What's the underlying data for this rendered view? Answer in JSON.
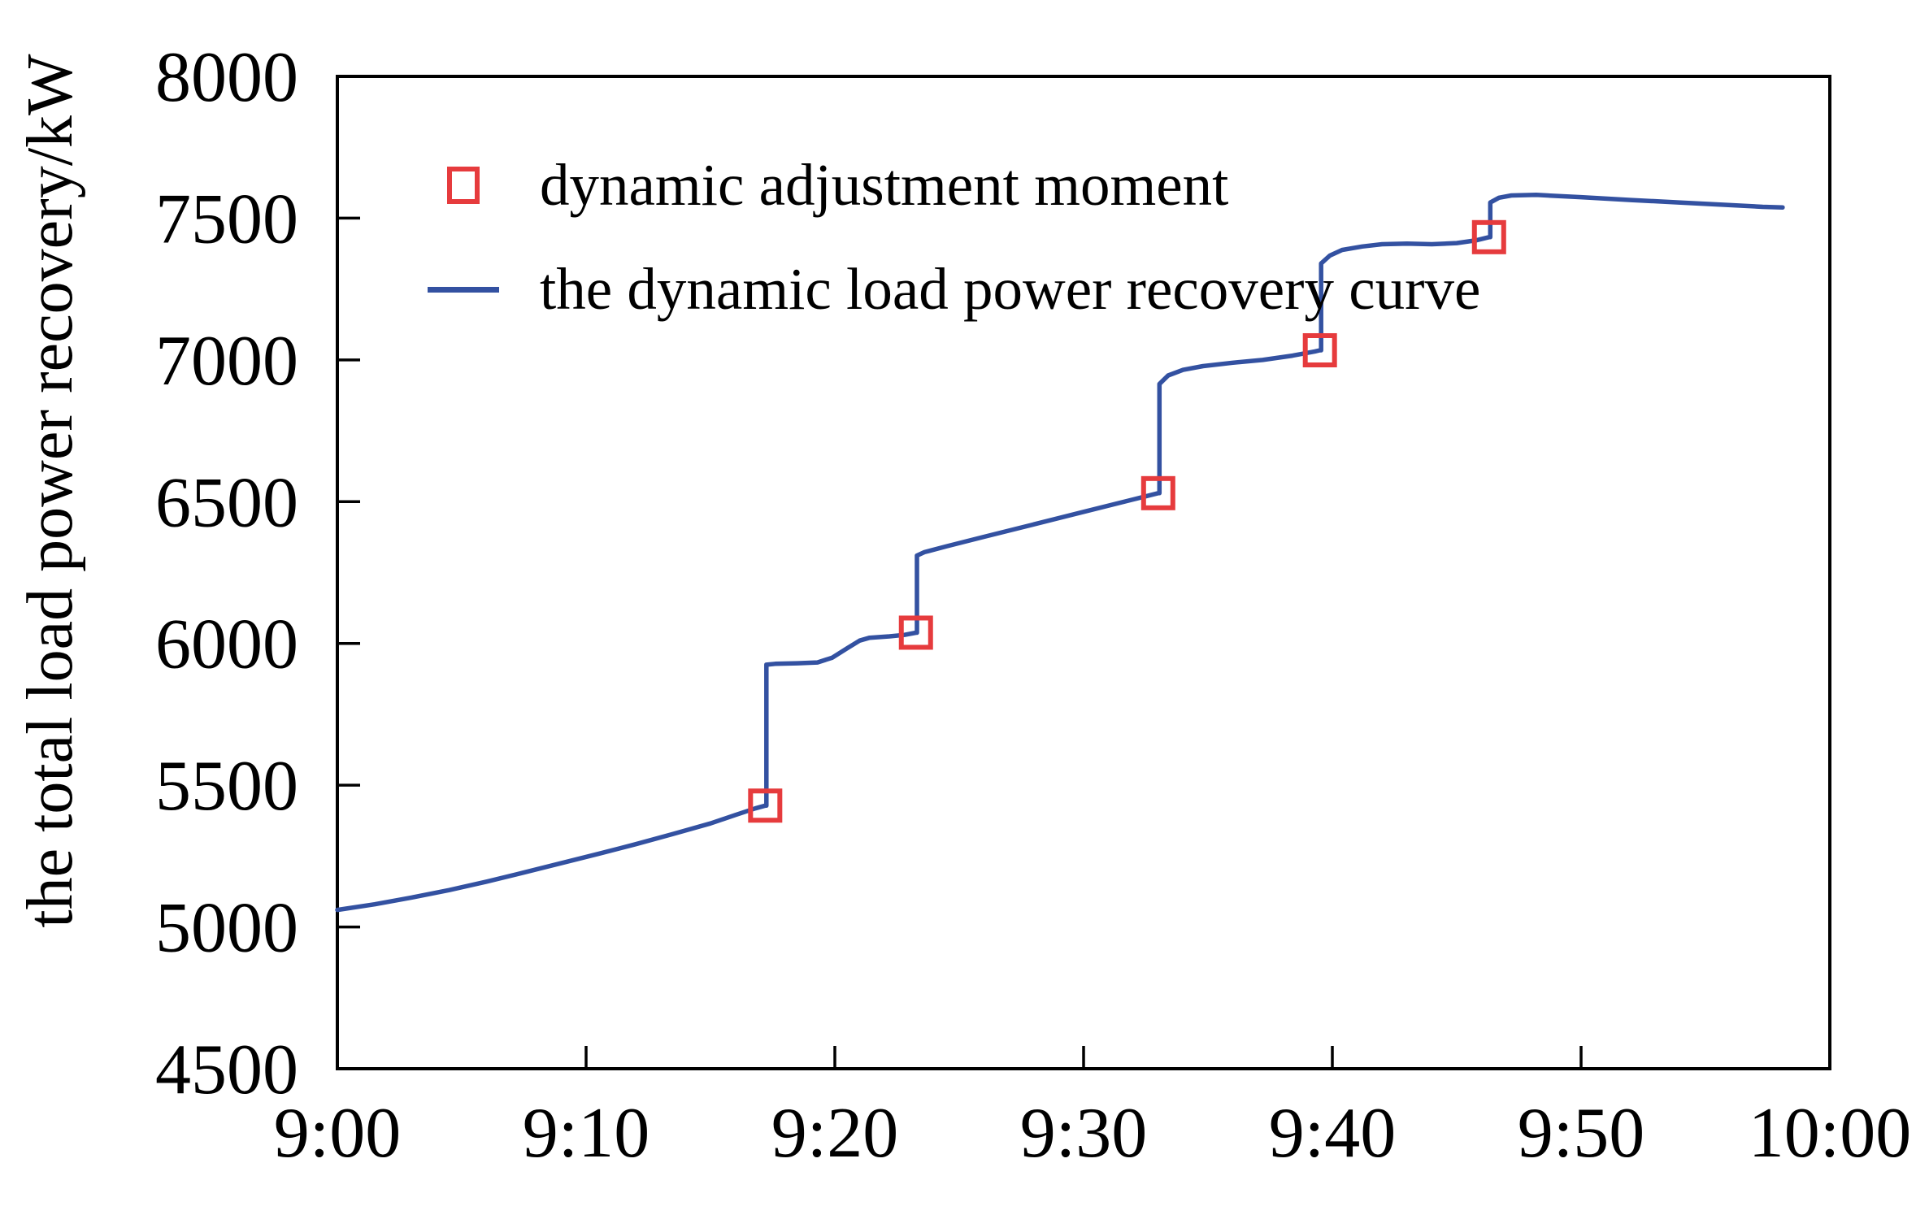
{
  "chart_data": {
    "type": "line",
    "title": "",
    "xlabel": "",
    "ylabel": "the total load power recovery/kW",
    "x_unit": "time (h:mm)",
    "y_unit": "kW",
    "xlim_minutes_after_9": [
      0,
      60
    ],
    "ylim": [
      4500,
      8000
    ],
    "grid": false,
    "x_ticks": [
      {
        "minutes": 0,
        "label": "9:00"
      },
      {
        "minutes": 10,
        "label": "9:10"
      },
      {
        "minutes": 20,
        "label": "9:20"
      },
      {
        "minutes": 30,
        "label": "9:30"
      },
      {
        "minutes": 40,
        "label": "9:40"
      },
      {
        "minutes": 50,
        "label": "9:50"
      },
      {
        "minutes": 60,
        "label": "10:00"
      }
    ],
    "y_ticks": [
      {
        "value": 4500,
        "label": "4500"
      },
      {
        "value": 5000,
        "label": "5000"
      },
      {
        "value": 5500,
        "label": "5500"
      },
      {
        "value": 6000,
        "label": "6000"
      },
      {
        "value": 6500,
        "label": "6500"
      },
      {
        "value": 7000,
        "label": "7000"
      },
      {
        "value": 7500,
        "label": "7500"
      },
      {
        "value": 8000,
        "label": "8000"
      }
    ],
    "legend": {
      "position": "top-left-inside",
      "entries": [
        {
          "label": "dynamic adjustment moment",
          "marker": "open-square",
          "color": "#e63b3d"
        },
        {
          "label": "the dynamic load power recovery curve",
          "marker": "line",
          "color": "#3351a1"
        }
      ]
    },
    "series": [
      {
        "name": "the dynamic load power recovery curve",
        "color": "#3351a1",
        "points": [
          [
            0,
            5060
          ],
          [
            1.5,
            5080
          ],
          [
            3,
            5104
          ],
          [
            4.5,
            5130
          ],
          [
            6,
            5160
          ],
          [
            7.5,
            5192
          ],
          [
            9,
            5225
          ],
          [
            10.5,
            5258
          ],
          [
            12,
            5292
          ],
          [
            13.5,
            5328
          ],
          [
            15,
            5365
          ],
          [
            16,
            5395
          ],
          [
            16.8,
            5418
          ],
          [
            17.2,
            5428
          ],
          [
            17.25,
            5428
          ],
          [
            17.25,
            5925
          ],
          [
            17.6,
            5928
          ],
          [
            18.5,
            5930
          ],
          [
            19.3,
            5933
          ],
          [
            19.9,
            5950
          ],
          [
            20.5,
            5983
          ],
          [
            21.0,
            6010
          ],
          [
            21.4,
            6020
          ],
          [
            22.2,
            6025
          ],
          [
            22.8,
            6030
          ],
          [
            23.26,
            6038
          ],
          [
            23.3,
            6038
          ],
          [
            23.3,
            6310
          ],
          [
            23.6,
            6322
          ],
          [
            24.5,
            6343
          ],
          [
            26,
            6376
          ],
          [
            28,
            6420
          ],
          [
            30,
            6464
          ],
          [
            32,
            6508
          ],
          [
            33.0,
            6530
          ],
          [
            33.05,
            6530
          ],
          [
            33.05,
            6915
          ],
          [
            33.4,
            6945
          ],
          [
            34.0,
            6965
          ],
          [
            34.8,
            6978
          ],
          [
            36,
            6990
          ],
          [
            37.2,
            7000
          ],
          [
            38.4,
            7015
          ],
          [
            39.3,
            7030
          ],
          [
            39.5,
            7034
          ],
          [
            39.55,
            7034
          ],
          [
            39.55,
            7340
          ],
          [
            39.9,
            7368
          ],
          [
            40.4,
            7388
          ],
          [
            41.2,
            7400
          ],
          [
            42.0,
            7408
          ],
          [
            43.0,
            7410
          ],
          [
            44.0,
            7408
          ],
          [
            45.0,
            7412
          ],
          [
            45.8,
            7422
          ],
          [
            46.3,
            7433
          ],
          [
            46.35,
            7433
          ],
          [
            46.35,
            7555
          ],
          [
            46.7,
            7572
          ],
          [
            47.2,
            7580
          ],
          [
            48.2,
            7582
          ],
          [
            50,
            7574
          ],
          [
            52,
            7564
          ],
          [
            54,
            7555
          ],
          [
            56,
            7546
          ],
          [
            57.3,
            7540
          ],
          [
            58.1,
            7538
          ]
        ]
      }
    ],
    "markers": {
      "name": "dynamic adjustment moment",
      "shape": "open-square",
      "color": "#e63b3d",
      "points": [
        [
          17.2,
          5428
        ],
        [
          23.26,
          6038
        ],
        [
          33.0,
          6530
        ],
        [
          39.5,
          7034
        ],
        [
          46.3,
          7433
        ]
      ]
    }
  },
  "colors": {
    "background": "#ffffff",
    "axis": "#000000",
    "text": "#000000",
    "curve": "#3351a1",
    "marker": "#e63b3d"
  }
}
